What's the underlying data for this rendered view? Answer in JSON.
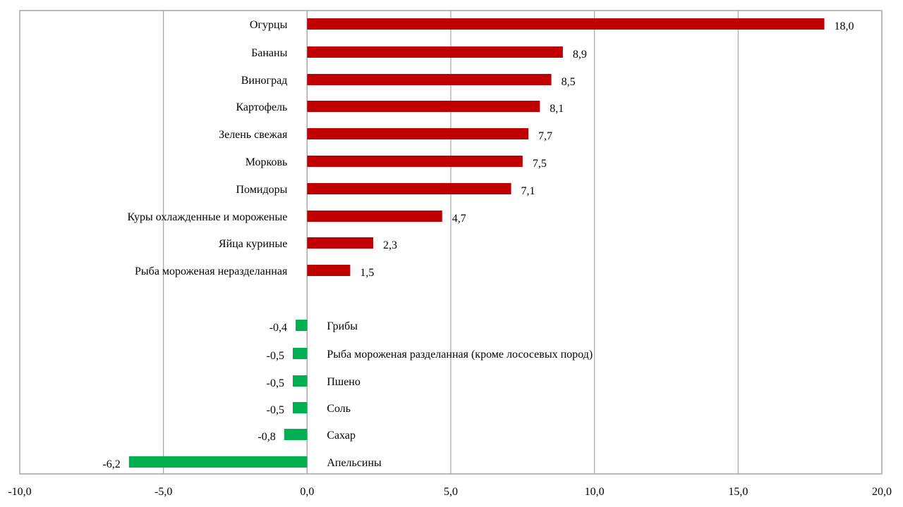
{
  "chart_data": {
    "type": "bar",
    "orientation": "horizontal",
    "xlim": [
      -10,
      20
    ],
    "xticks": [
      -10,
      -5,
      0,
      5,
      10,
      15,
      20
    ],
    "xtick_labels": [
      "-10,0",
      "-5,0",
      "0,0",
      "5,0",
      "10,0",
      "15,0",
      "20,0"
    ],
    "grid": true,
    "colors": {
      "positive": "#c00000",
      "negative": "#00b050",
      "grid": "#a6a6a6"
    },
    "bars": [
      {
        "category": "Огурцы",
        "value": 18.0,
        "label": "18,0"
      },
      {
        "category": "Бананы",
        "value": 8.9,
        "label": "8,9"
      },
      {
        "category": "Виноград",
        "value": 8.5,
        "label": "8,5"
      },
      {
        "category": "Картофель",
        "value": 8.1,
        "label": "8,1"
      },
      {
        "category": "Зелень свежая",
        "value": 7.7,
        "label": "7,7"
      },
      {
        "category": "Морковь",
        "value": 7.5,
        "label": "7,5"
      },
      {
        "category": "Помидоры",
        "value": 7.1,
        "label": "7,1"
      },
      {
        "category": "Куры охлажденные и мороженые",
        "value": 4.7,
        "label": "4,7"
      },
      {
        "category": "Яйца куриные",
        "value": 2.3,
        "label": "2,3"
      },
      {
        "category": "Рыба мороженая неразделанная",
        "value": 1.5,
        "label": "1,5"
      },
      {
        "category": "Грибы",
        "value": -0.4,
        "label": "-0,4"
      },
      {
        "category": "Рыба мороженая разделанная (кроме лососевых пород)",
        "value": -0.5,
        "label": "-0,5"
      },
      {
        "category": "Пшено",
        "value": -0.5,
        "label": "-0,5"
      },
      {
        "category": "Соль",
        "value": -0.5,
        "label": "-0,5"
      },
      {
        "category": "Сахар",
        "value": -0.8,
        "label": "-0,8"
      },
      {
        "category": "Апельсины",
        "value": -6.2,
        "label": "-6,2"
      }
    ]
  }
}
